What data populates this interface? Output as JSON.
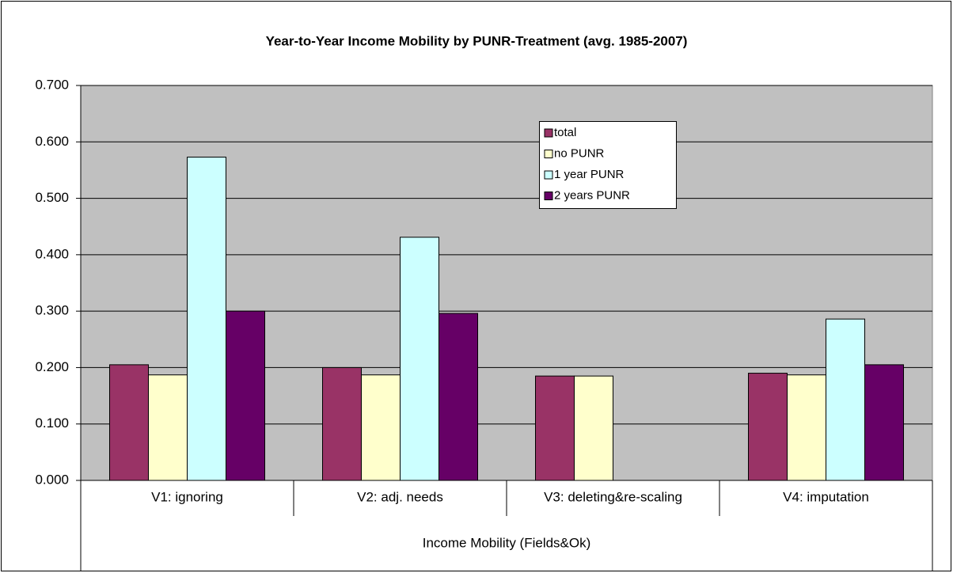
{
  "chart_data": {
    "type": "bar",
    "title": "Year-to-Year Income Mobility by PUNR-Treatment (avg. 1985-2007)",
    "xlabel": "Income Mobility (Fields&Ok)",
    "categories": [
      "V1: ignoring",
      "V2: adj. needs",
      "V3: deleting&re-scaling",
      "V4: imputation"
    ],
    "series": [
      {
        "name": "total",
        "color": "#993366",
        "values": [
          0.205,
          0.2,
          0.185,
          0.19
        ]
      },
      {
        "name": "no PUNR",
        "color": "#FFFFCC",
        "values": [
          0.187,
          0.187,
          0.185,
          0.187
        ]
      },
      {
        "name": "1 year PUNR",
        "color": "#CCFFFF",
        "values": [
          0.573,
          0.431,
          null,
          0.286
        ]
      },
      {
        "name": "2 years PUNR",
        "color": "#660066",
        "values": [
          0.3,
          0.296,
          null,
          0.205
        ]
      }
    ],
    "ylim": [
      0,
      0.7
    ],
    "yticks": [
      {
        "value": 0,
        "label": "0.000"
      },
      {
        "value": 0.1,
        "label": "0.100"
      },
      {
        "value": 0.2,
        "label": "0.200"
      },
      {
        "value": 0.3,
        "label": "0.300"
      },
      {
        "value": 0.4,
        "label": "0.400"
      },
      {
        "value": 0.5,
        "label": "0.500"
      },
      {
        "value": 0.6,
        "label": "0.600"
      },
      {
        "value": 0.7,
        "label": "0.700"
      }
    ],
    "grid": true,
    "background": "#C0C0C0"
  }
}
